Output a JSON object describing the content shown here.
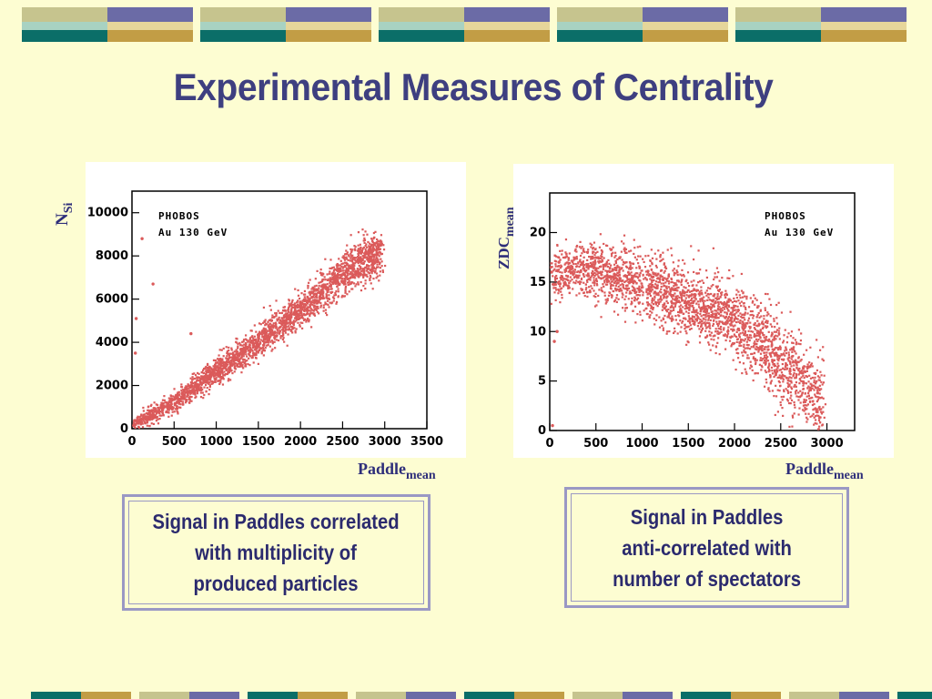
{
  "title": "Experimental Measures of Centrality",
  "colors": {
    "background": "#FDFDD2",
    "title": "#3E3F80",
    "band_olive": "#C6C48E",
    "band_periwinkle": "#6B6BA6",
    "band_teal": "#0B6E68",
    "band_gold": "#C29D45",
    "band_light_teal": "#A8D2C2",
    "band_light_gold": "#E6D69A",
    "points": "#DB5A5A"
  },
  "chart_data": [
    {
      "type": "scatter",
      "panel_tag": [
        "PHOBOS",
        "Au 130 GeV"
      ],
      "ylabel": "N",
      "ylabel_sub": "Si",
      "xlabel": "Paddle",
      "xlabel_sub": "mean",
      "xlim": [
        0,
        3500
      ],
      "ylim": [
        0,
        11000
      ],
      "xticks": [
        0,
        500,
        1000,
        1500,
        2000,
        2500,
        3000,
        3500
      ],
      "yticks": [
        0,
        2000,
        4000,
        6000,
        8000,
        10000
      ],
      "series": [
        {
          "trend": [
            [
              0,
              200
            ],
            [
              500,
              1300
            ],
            [
              1000,
              2700
            ],
            [
              1500,
              4100
            ],
            [
              2000,
              5600
            ],
            [
              2500,
              7200
            ],
            [
              2900,
              8200
            ]
          ],
          "points": [
            [
              20,
              150
            ],
            [
              80,
              300
            ],
            [
              150,
              500
            ],
            [
              250,
              700
            ],
            [
              350,
              1000
            ],
            [
              450,
              1250
            ],
            [
              600,
              1600
            ],
            [
              750,
              2000
            ],
            [
              900,
              2400
            ],
            [
              1050,
              2800
            ],
            [
              1200,
              3200
            ],
            [
              1350,
              3700
            ],
            [
              1500,
              4100
            ],
            [
              1650,
              4500
            ],
            [
              1800,
              5000
            ],
            [
              1950,
              5400
            ],
            [
              2100,
              5900
            ],
            [
              2250,
              6300
            ],
            [
              2400,
              6800
            ],
            [
              2550,
              7300
            ],
            [
              2700,
              7800
            ],
            [
              2850,
              8200
            ],
            [
              2950,
              8500
            ],
            [
              120,
              8800
            ],
            [
              250,
              6700
            ],
            [
              50,
              5100
            ],
            [
              40,
              3500
            ],
            [
              700,
              4400
            ]
          ]
        }
      ]
    },
    {
      "type": "scatter",
      "panel_tag": [
        "PHOBOS",
        "Au 130 GeV"
      ],
      "ylabel": "ZDC",
      "ylabel_sub": "mean",
      "xlabel": "Paddle",
      "xlabel_sub": "mean",
      "xlim": [
        0,
        3300
      ],
      "ylim": [
        0,
        24
      ],
      "xticks": [
        0,
        500,
        1000,
        1500,
        2000,
        2500,
        3000
      ],
      "yticks": [
        0,
        5,
        10,
        15,
        20
      ],
      "series": [
        {
          "trend": [
            [
              0,
              15.5
            ],
            [
              300,
              16.5
            ],
            [
              600,
              16
            ],
            [
              1000,
              14.8
            ],
            [
              1500,
              13
            ],
            [
              2000,
              11
            ],
            [
              2300,
              9
            ],
            [
              2600,
              6
            ],
            [
              2900,
              3.5
            ]
          ],
          "points": [
            [
              20,
              16
            ],
            [
              100,
              17
            ],
            [
              200,
              16.5
            ],
            [
              350,
              16.8
            ],
            [
              500,
              16.2
            ],
            [
              700,
              15.8
            ],
            [
              900,
              15
            ],
            [
              1100,
              14.5
            ],
            [
              1300,
              13.8
            ],
            [
              1500,
              13
            ],
            [
              1700,
              12.2
            ],
            [
              1900,
              11.4
            ],
            [
              2100,
              10.3
            ],
            [
              2300,
              9
            ],
            [
              2450,
              7.8
            ],
            [
              2600,
              6
            ],
            [
              2750,
              4.8
            ],
            [
              2900,
              3.8
            ],
            [
              30,
              0.5
            ],
            [
              80,
              10
            ],
            [
              50,
              9
            ]
          ]
        }
      ]
    }
  ],
  "captions": {
    "left": [
      "Signal in Paddles correlated",
      "with multiplicity of",
      "produced particles"
    ],
    "right": [
      "Signal in Paddles",
      "anti-correlated with",
      "number of spectators"
    ]
  }
}
